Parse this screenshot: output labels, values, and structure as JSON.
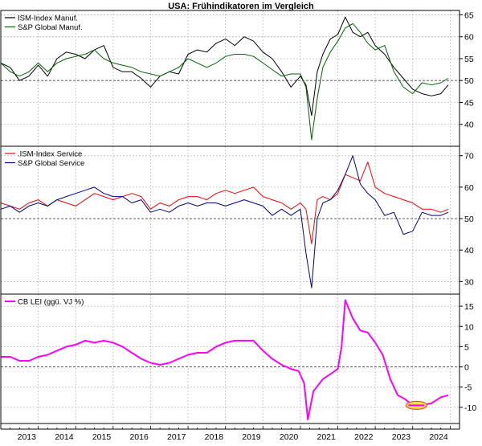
{
  "chart_data": [
    {
      "type": "line",
      "title": "USA: Frühindikatoren im Vergleich",
      "ylim": [
        35,
        66
      ],
      "yticks": [
        40,
        45,
        50,
        55,
        60,
        65
      ],
      "reference_line": 50,
      "series": [
        {
          "name": "ISM-Index Manuf.",
          "color": "#000000",
          "x": [
            2012.0,
            2012.25,
            2012.5,
            2012.75,
            2013.0,
            2013.25,
            2013.5,
            2013.75,
            2014.0,
            2014.25,
            2014.5,
            2014.75,
            2015.0,
            2015.25,
            2015.5,
            2015.75,
            2016.0,
            2016.25,
            2016.5,
            2016.75,
            2017.0,
            2017.25,
            2017.5,
            2017.75,
            2018.0,
            2018.25,
            2018.5,
            2018.75,
            2019.0,
            2019.25,
            2019.5,
            2019.75,
            2020.0,
            2020.15,
            2020.3,
            2020.45,
            2020.6,
            2020.8,
            2021.0,
            2021.2,
            2021.4,
            2021.6,
            2021.8,
            2022.0,
            2022.25,
            2022.5,
            2022.75,
            2023.0,
            2023.25,
            2023.5,
            2023.75,
            2023.95
          ],
          "values": [
            54,
            53,
            50,
            51,
            53.5,
            51,
            55,
            56.5,
            56,
            55,
            57,
            58,
            53,
            52,
            52,
            50.5,
            48.5,
            51,
            52,
            51.5,
            56,
            57,
            56.5,
            58.5,
            59.5,
            58,
            60,
            59,
            56.5,
            55,
            52,
            48.5,
            51,
            49,
            42,
            52,
            56,
            59.5,
            60.5,
            64.5,
            61,
            60,
            61,
            58,
            56,
            53,
            50.5,
            48,
            47,
            46.5,
            47,
            49
          ]
        },
        {
          "name": "S&P Global Manuf.",
          "color": "#006400",
          "x": [
            2012.0,
            2012.25,
            2012.5,
            2012.75,
            2013.0,
            2013.25,
            2013.5,
            2013.75,
            2014.0,
            2014.25,
            2014.5,
            2014.75,
            2015.0,
            2015.25,
            2015.5,
            2015.75,
            2016.0,
            2016.25,
            2016.5,
            2016.75,
            2017.0,
            2017.25,
            2017.5,
            2017.75,
            2018.0,
            2018.25,
            2018.5,
            2018.75,
            2019.0,
            2019.25,
            2019.5,
            2019.75,
            2020.0,
            2020.15,
            2020.3,
            2020.45,
            2020.6,
            2020.8,
            2021.0,
            2021.2,
            2021.4,
            2021.6,
            2021.8,
            2022.0,
            2022.25,
            2022.5,
            2022.75,
            2023.0,
            2023.25,
            2023.5,
            2023.75,
            2023.95
          ],
          "values": [
            54,
            52,
            51,
            52,
            54,
            52,
            54,
            55,
            55.5,
            56,
            57,
            55,
            54,
            53.5,
            53,
            52,
            51.5,
            51,
            52,
            53,
            55,
            54,
            53,
            54,
            55.5,
            56,
            56,
            55.5,
            54,
            52.5,
            51,
            51.5,
            51.5,
            48.5,
            36.5,
            46,
            53,
            56.5,
            59,
            62,
            63,
            61,
            58.5,
            57,
            58,
            52,
            48.5,
            47,
            49.5,
            49,
            49.5,
            50.5
          ]
        }
      ]
    },
    {
      "type": "line",
      "ylim": [
        26,
        73
      ],
      "yticks": [
        30,
        40,
        50,
        60,
        70
      ],
      "reference_line": 50,
      "series": [
        {
          "name": ".ISM-Index Service",
          "color": "#ff0000",
          "x": [
            2012.0,
            2012.25,
            2012.5,
            2012.75,
            2013.0,
            2013.25,
            2013.5,
            2013.75,
            2014.0,
            2014.25,
            2014.5,
            2014.75,
            2015.0,
            2015.25,
            2015.5,
            2015.75,
            2016.0,
            2016.25,
            2016.5,
            2016.75,
            2017.0,
            2017.25,
            2017.5,
            2017.75,
            2018.0,
            2018.25,
            2018.5,
            2018.75,
            2019.0,
            2019.25,
            2019.5,
            2019.75,
            2020.0,
            2020.15,
            2020.3,
            2020.45,
            2020.6,
            2020.8,
            2021.0,
            2021.2,
            2021.4,
            2021.6,
            2021.8,
            2022.0,
            2022.25,
            2022.5,
            2022.75,
            2023.0,
            2023.25,
            2023.5,
            2023.75,
            2023.95
          ],
          "values": [
            55,
            54,
            53,
            55,
            56,
            54,
            56,
            55,
            54,
            56,
            58,
            57,
            56,
            57,
            58,
            57,
            53,
            55,
            54,
            56,
            57,
            57,
            56,
            58,
            59,
            58,
            59,
            60,
            57,
            56,
            55,
            53,
            55,
            53,
            42,
            56,
            57,
            56,
            58,
            64,
            63,
            62,
            68,
            60,
            58,
            57,
            56,
            55,
            53,
            53,
            52,
            53
          ]
        },
        {
          "name": "S&P Global Service",
          "color": "#00008b",
          "x": [
            2012.0,
            2012.25,
            2012.5,
            2012.75,
            2013.0,
            2013.25,
            2013.5,
            2013.75,
            2014.0,
            2014.25,
            2014.5,
            2014.75,
            2015.0,
            2015.25,
            2015.5,
            2015.75,
            2016.0,
            2016.25,
            2016.5,
            2016.75,
            2017.0,
            2017.25,
            2017.5,
            2017.75,
            2018.0,
            2018.25,
            2018.5,
            2018.75,
            2019.0,
            2019.25,
            2019.5,
            2019.75,
            2020.0,
            2020.15,
            2020.3,
            2020.45,
            2020.6,
            2020.8,
            2021.0,
            2021.2,
            2021.4,
            2021.6,
            2021.8,
            2022.0,
            2022.25,
            2022.5,
            2022.75,
            2023.0,
            2023.25,
            2023.5,
            2023.75,
            2023.95
          ],
          "values": [
            53,
            54,
            52,
            54,
            55,
            54,
            56,
            57,
            58,
            59,
            60,
            58,
            57,
            57,
            55,
            56,
            52,
            53,
            52,
            54,
            55,
            54,
            55,
            55,
            54,
            55,
            56,
            55,
            54,
            51,
            53,
            51,
            53,
            39,
            28,
            50,
            55,
            56,
            59,
            64,
            70,
            61,
            58,
            56,
            51,
            52,
            45,
            46,
            52,
            51,
            51,
            52
          ]
        }
      ]
    },
    {
      "type": "line",
      "ylim": [
        -14,
        18
      ],
      "yticks": [
        -10,
        -5,
        0,
        5,
        10,
        15
      ],
      "reference_line": 0,
      "series": [
        {
          "name": "CB LEI (ggü. VJ %)",
          "color": "#ff00ff",
          "x": [
            2012.0,
            2012.25,
            2012.5,
            2012.75,
            2013.0,
            2013.25,
            2013.5,
            2013.75,
            2014.0,
            2014.25,
            2014.5,
            2014.75,
            2015.0,
            2015.25,
            2015.5,
            2015.75,
            2016.0,
            2016.25,
            2016.5,
            2016.75,
            2017.0,
            2017.25,
            2017.5,
            2017.75,
            2018.0,
            2018.25,
            2018.5,
            2018.75,
            2019.0,
            2019.25,
            2019.5,
            2019.75,
            2019.95,
            2020.1,
            2020.2,
            2020.35,
            2020.6,
            2020.85,
            2021.0,
            2021.1,
            2021.2,
            2021.4,
            2021.6,
            2021.8,
            2022.0,
            2022.2,
            2022.4,
            2022.6,
            2022.8,
            2023.0,
            2023.25,
            2023.5,
            2023.75,
            2023.95
          ],
          "values": [
            2.5,
            2.5,
            1.5,
            1.5,
            2.5,
            3,
            4,
            5,
            5.5,
            6.5,
            6,
            6.5,
            6,
            5,
            3.5,
            2,
            1,
            0.5,
            1,
            2,
            3,
            3.5,
            3.5,
            5,
            6,
            6.5,
            6.5,
            6.5,
            4,
            2,
            0.5,
            -0.5,
            -1,
            -4,
            -13,
            -6,
            -3,
            -1.5,
            -0.5,
            5,
            16.5,
            12,
            9,
            8.5,
            6,
            3,
            -3,
            -7,
            -8,
            -9.5,
            -9.5,
            -9,
            -7.5,
            -7
          ]
        }
      ],
      "highlight": {
        "x": 2023.1,
        "y": -9.5
      }
    }
  ],
  "x_axis": {
    "range": [
      2012.0,
      2024.25
    ],
    "tick_labels": [
      "2013",
      "2014",
      "2015",
      "2016",
      "2017",
      "2018",
      "2019",
      "2020",
      "2021",
      "2022",
      "2023",
      "2024"
    ],
    "tick_positions": [
      2013,
      2014,
      2015,
      2016,
      2017,
      2018,
      2019,
      2020,
      2021,
      2022,
      2023,
      2024
    ]
  },
  "colors": {
    "grid": "#bcbcbc",
    "frame": "#000000",
    "highlight_fill": "#ffe24a",
    "highlight_stroke": "#d9534f"
  }
}
